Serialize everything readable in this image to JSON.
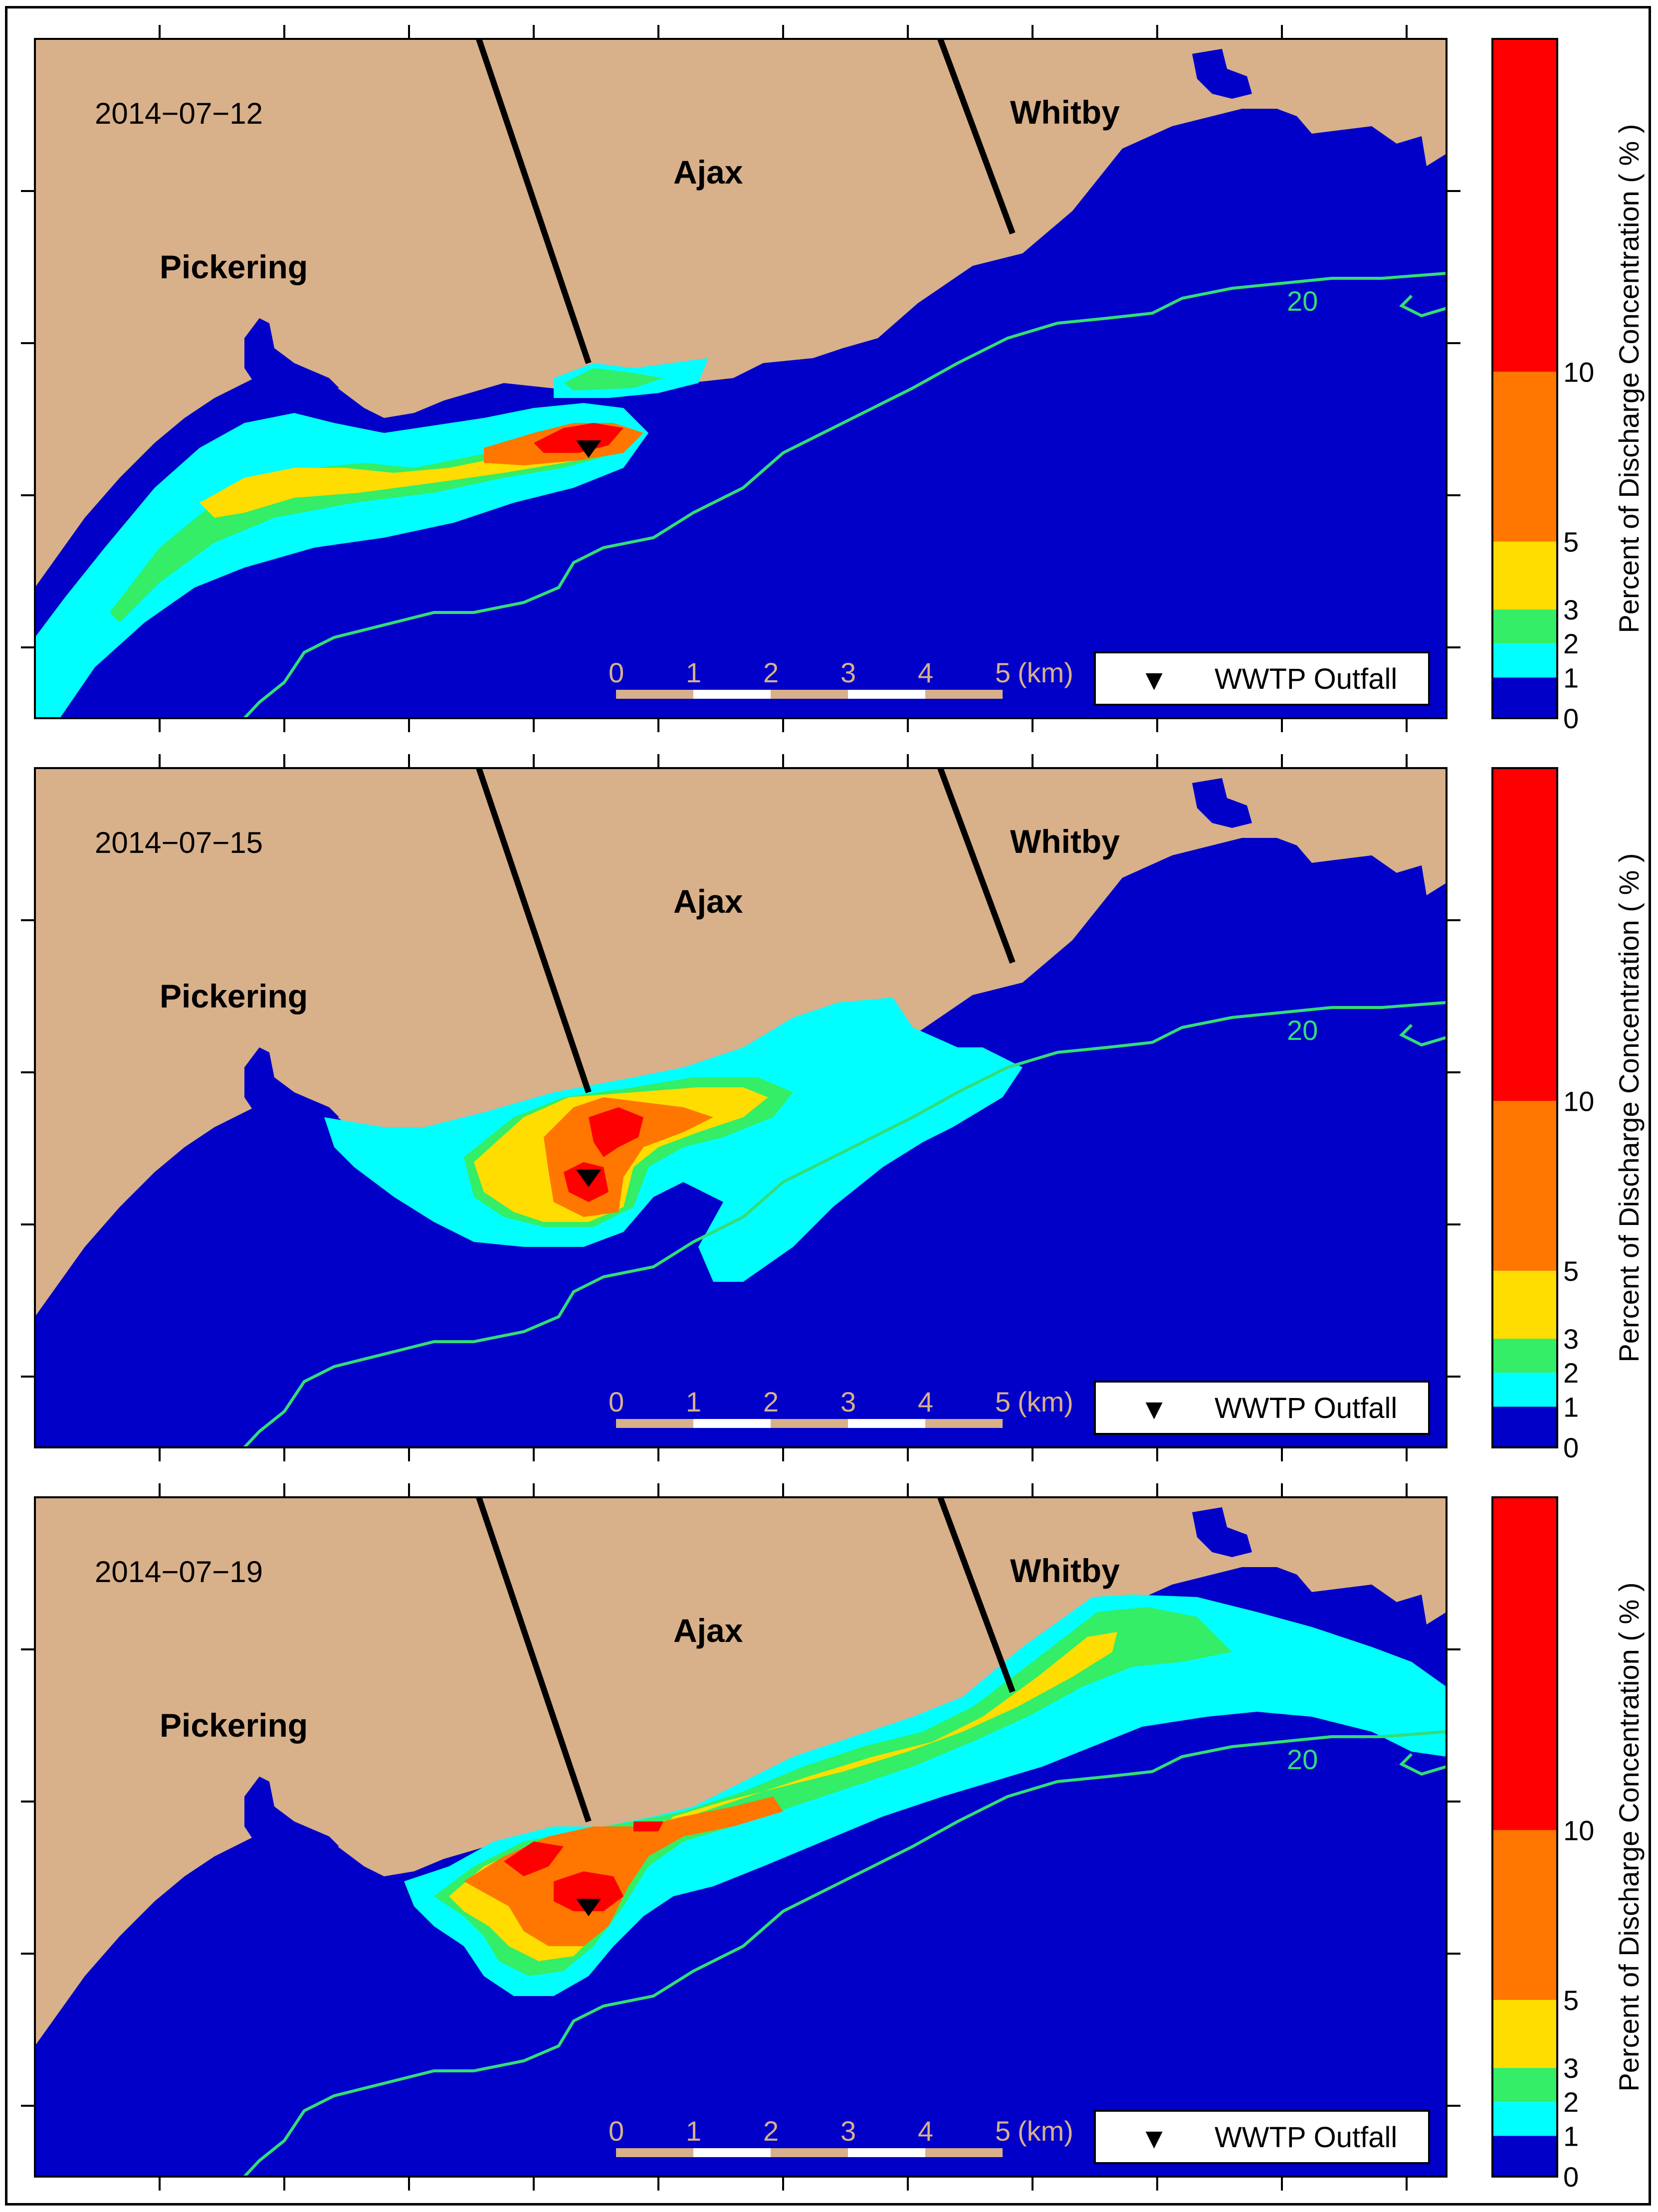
{
  "colors": {
    "water": "#0000c8",
    "land": "#d8b08a",
    "c0_1": "#0000c8",
    "c1_2": "#00ffff",
    "c2_3": "#33ee66",
    "c3_5": "#ffdd00",
    "c5_10": "#ff7700",
    "c10": "#ff0000",
    "contour": "#33dd77",
    "boundary": "#000000"
  },
  "places": {
    "pickering": "Pickering",
    "ajax": "Ajax",
    "whitby": "Whitby"
  },
  "contour_label": "20",
  "legend": {
    "symbol": "▼",
    "label": "WWTP Outfall"
  },
  "scale_bar": {
    "ticks": [
      "0",
      "1",
      "2",
      "3",
      "4",
      "5"
    ],
    "unit": "(km)"
  },
  "colorbar": {
    "title": "Percent of Discharge Concentration ( % )",
    "ticks": [
      "10",
      "5",
      "3",
      "2",
      "1",
      "0"
    ]
  },
  "panels": [
    {
      "date": "2014−07−12"
    },
    {
      "date": "2014−07−15"
    },
    {
      "date": "2014−07−19"
    }
  ]
}
